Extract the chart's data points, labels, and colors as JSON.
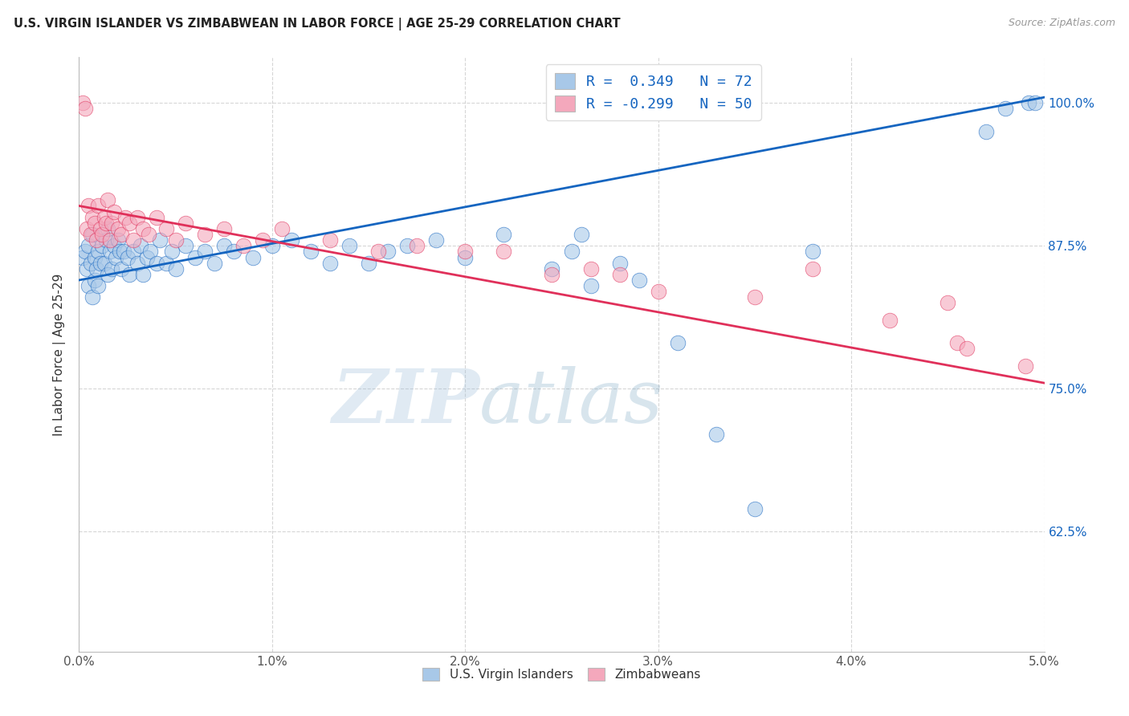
{
  "title": "U.S. VIRGIN ISLANDER VS ZIMBABWEAN IN LABOR FORCE | AGE 25-29 CORRELATION CHART",
  "source": "Source: ZipAtlas.com",
  "xlabel_ticks": [
    "0.0%",
    "1.0%",
    "2.0%",
    "3.0%",
    "4.0%",
    "5.0%"
  ],
  "xlabel_values": [
    0.0,
    1.0,
    2.0,
    3.0,
    4.0,
    5.0
  ],
  "ylabel_ticks": [
    "62.5%",
    "75.0%",
    "87.5%",
    "100.0%"
  ],
  "ylabel_values": [
    62.5,
    75.0,
    87.5,
    100.0
  ],
  "ylabel_label": "In Labor Force | Age 25-29",
  "xlim": [
    0.0,
    5.0
  ],
  "ylim": [
    52.0,
    104.0
  ],
  "blue_R": 0.349,
  "blue_N": 72,
  "pink_R": -0.299,
  "pink_N": 50,
  "legend_label_blue": "U.S. Virgin Islanders",
  "legend_label_pink": "Zimbabweans",
  "blue_color": "#a8c8e8",
  "pink_color": "#f4a8bc",
  "blue_line_color": "#1565c0",
  "pink_line_color": "#e0305a",
  "watermark_zip": "ZIP",
  "watermark_atlas": "atlas",
  "blue_line_x0": 0.0,
  "blue_line_y0": 84.5,
  "blue_line_x1": 5.0,
  "blue_line_y1": 100.5,
  "pink_line_x0": 0.0,
  "pink_line_y0": 91.0,
  "pink_line_x1": 5.0,
  "pink_line_y1": 75.5,
  "blue_scatter_x": [
    0.02,
    0.03,
    0.04,
    0.05,
    0.05,
    0.06,
    0.07,
    0.07,
    0.08,
    0.08,
    0.09,
    0.1,
    0.1,
    0.11,
    0.12,
    0.13,
    0.14,
    0.15,
    0.15,
    0.16,
    0.17,
    0.18,
    0.19,
    0.2,
    0.21,
    0.22,
    0.23,
    0.25,
    0.26,
    0.28,
    0.3,
    0.32,
    0.33,
    0.35,
    0.37,
    0.4,
    0.42,
    0.45,
    0.48,
    0.5,
    0.55,
    0.6,
    0.65,
    0.7,
    0.75,
    0.8,
    0.9,
    1.0,
    1.1,
    1.2,
    1.3,
    1.4,
    1.5,
    1.6,
    1.7,
    1.85,
    2.0,
    2.2,
    2.45,
    2.55,
    2.6,
    2.65,
    2.8,
    2.9,
    3.1,
    3.3,
    3.5,
    3.8,
    4.7,
    4.8,
    4.92,
    4.95
  ],
  "blue_scatter_y": [
    86.5,
    87.0,
    85.5,
    84.0,
    87.5,
    86.0,
    88.5,
    83.0,
    86.5,
    84.5,
    85.5,
    87.0,
    84.0,
    86.0,
    87.5,
    86.0,
    88.0,
    85.0,
    89.0,
    87.0,
    85.5,
    87.5,
    86.5,
    88.0,
    87.0,
    85.5,
    87.0,
    86.5,
    85.0,
    87.0,
    86.0,
    87.5,
    85.0,
    86.5,
    87.0,
    86.0,
    88.0,
    86.0,
    87.0,
    85.5,
    87.5,
    86.5,
    87.0,
    86.0,
    87.5,
    87.0,
    86.5,
    87.5,
    88.0,
    87.0,
    86.0,
    87.5,
    86.0,
    87.0,
    87.5,
    88.0,
    86.5,
    88.5,
    85.5,
    87.0,
    88.5,
    84.0,
    86.0,
    84.5,
    79.0,
    71.0,
    64.5,
    87.0,
    97.5,
    99.5,
    100.0,
    100.0
  ],
  "pink_scatter_x": [
    0.02,
    0.03,
    0.04,
    0.05,
    0.06,
    0.07,
    0.08,
    0.09,
    0.1,
    0.11,
    0.12,
    0.13,
    0.14,
    0.15,
    0.16,
    0.17,
    0.18,
    0.2,
    0.22,
    0.24,
    0.26,
    0.28,
    0.3,
    0.33,
    0.36,
    0.4,
    0.45,
    0.5,
    0.55,
    0.65,
    0.75,
    0.85,
    0.95,
    1.05,
    1.3,
    1.55,
    1.75,
    2.0,
    2.2,
    2.45,
    2.65,
    2.8,
    3.0,
    3.5,
    3.8,
    4.2,
    4.5,
    4.55,
    4.6,
    4.9
  ],
  "pink_scatter_y": [
    100.0,
    99.5,
    89.0,
    91.0,
    88.5,
    90.0,
    89.5,
    88.0,
    91.0,
    89.0,
    88.5,
    90.0,
    89.5,
    91.5,
    88.0,
    89.5,
    90.5,
    89.0,
    88.5,
    90.0,
    89.5,
    88.0,
    90.0,
    89.0,
    88.5,
    90.0,
    89.0,
    88.0,
    89.5,
    88.5,
    89.0,
    87.5,
    88.0,
    89.0,
    88.0,
    87.0,
    87.5,
    87.0,
    87.0,
    85.0,
    85.5,
    85.0,
    83.5,
    83.0,
    85.5,
    81.0,
    82.5,
    79.0,
    78.5,
    77.0
  ]
}
